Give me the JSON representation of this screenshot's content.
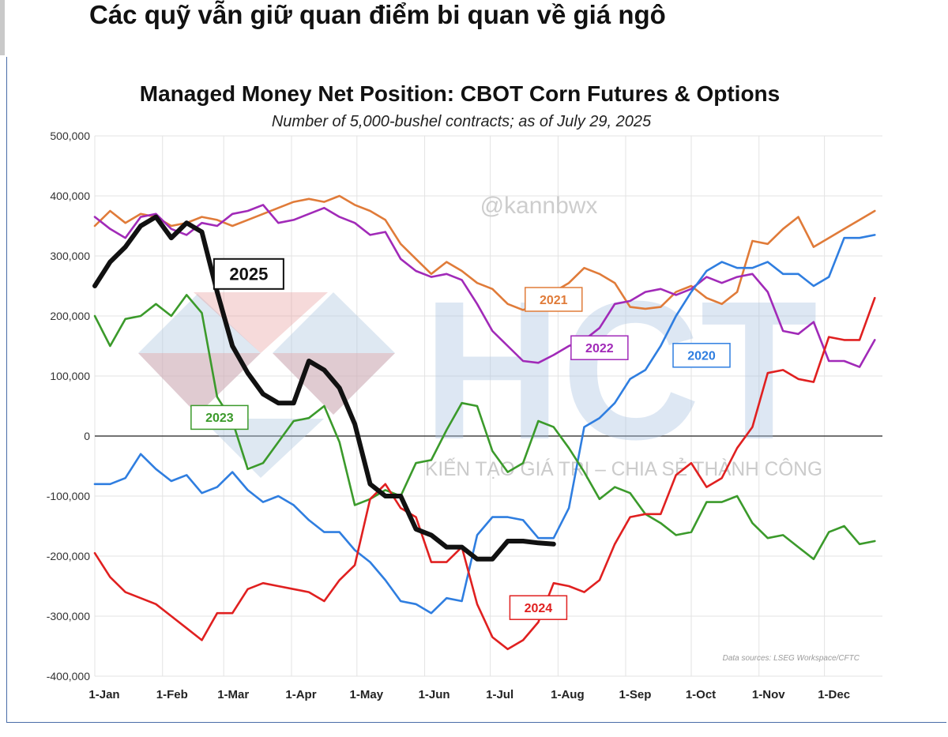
{
  "headline": "Các quỹ vẫn giữ quan điểm bi quan về giá ngô",
  "chart_data": {
    "type": "line",
    "title": "Managed Money Net Position: CBOT Corn Futures & Options",
    "subtitle": "Number of 5,000-bushel contracts; as of July 29, 2025",
    "xlabel": "",
    "ylabel": "",
    "ylim": [
      -400000,
      500000
    ],
    "y_ticks": [
      500000,
      400000,
      300000,
      200000,
      100000,
      0,
      -100000,
      -200000,
      -300000,
      -400000
    ],
    "y_tick_labels": [
      "500,000",
      "400,000",
      "300,000",
      "200,000",
      "100,000",
      "0",
      "-100,000",
      "-200,000",
      "-300,000",
      "-400,000"
    ],
    "x_tick_labels": [
      "1-Jan",
      "1-Feb",
      "1-Mar",
      "1-Apr",
      "1-May",
      "1-Jun",
      "1-Jul",
      "1-Aug",
      "1-Sep",
      "1-Oct",
      "1-Nov",
      "1-Dec"
    ],
    "x_unit": "week of year (0 = 1-Jan)",
    "grid": true,
    "watermark": "@kannbwx",
    "logo_text": "HCT",
    "logo_tagline": "KIẾN TẠO GIÁ TRỊ – CHIA SẺ THÀNH CÔNG",
    "source": "Data sources: LSEG Workspace/CFTC",
    "series": [
      {
        "name": "2021",
        "color": "#e07b39",
        "x": [
          0,
          1,
          2,
          3,
          4,
          5,
          6,
          7,
          8,
          9,
          10,
          11,
          12,
          13,
          14,
          15,
          16,
          17,
          18,
          19,
          20,
          21,
          22,
          23,
          24,
          25,
          26,
          27,
          28,
          29,
          30,
          31,
          32,
          33,
          34,
          35,
          36,
          37,
          38,
          39,
          40,
          41,
          42,
          43,
          44,
          45,
          46,
          47,
          48,
          49,
          50,
          51
        ],
        "values": [
          350000,
          375000,
          355000,
          370000,
          365000,
          350000,
          355000,
          365000,
          360000,
          350000,
          360000,
          370000,
          380000,
          390000,
          395000,
          390000,
          400000,
          385000,
          375000,
          360000,
          320000,
          295000,
          270000,
          290000,
          275000,
          255000,
          245000,
          220000,
          210000,
          220000,
          240000,
          255000,
          280000,
          270000,
          255000,
          215000,
          212000,
          215000,
          240000,
          250000,
          230000,
          220000,
          240000,
          325000,
          320000,
          345000,
          365000,
          315000,
          330000,
          345000,
          360000,
          375000
        ]
      },
      {
        "name": "2022",
        "color": "#a12ab8",
        "x": [
          0,
          1,
          2,
          3,
          4,
          5,
          6,
          7,
          8,
          9,
          10,
          11,
          12,
          13,
          14,
          15,
          16,
          17,
          18,
          19,
          20,
          21,
          22,
          23,
          24,
          25,
          26,
          27,
          28,
          29,
          30,
          31,
          32,
          33,
          34,
          35,
          36,
          37,
          38,
          39,
          40,
          41,
          42,
          43,
          44,
          45,
          46,
          47,
          48,
          49,
          50,
          51
        ],
        "values": [
          365000,
          345000,
          330000,
          365000,
          370000,
          345000,
          335000,
          355000,
          350000,
          370000,
          375000,
          385000,
          355000,
          360000,
          370000,
          380000,
          365000,
          355000,
          335000,
          340000,
          295000,
          275000,
          265000,
          270000,
          260000,
          220000,
          175000,
          150000,
          125000,
          122000,
          135000,
          150000,
          160000,
          180000,
          220000,
          225000,
          240000,
          245000,
          235000,
          245000,
          265000,
          255000,
          265000,
          270000,
          240000,
          175000,
          170000,
          190000,
          125000,
          125000,
          115000,
          160000
        ]
      },
      {
        "name": "2020",
        "color": "#2f7ee0",
        "x": [
          0,
          1,
          2,
          3,
          4,
          5,
          6,
          7,
          8,
          9,
          10,
          11,
          12,
          13,
          14,
          15,
          16,
          17,
          18,
          19,
          20,
          21,
          22,
          23,
          24,
          25,
          26,
          27,
          28,
          29,
          30,
          31,
          32,
          33,
          34,
          35,
          36,
          37,
          38,
          39,
          40,
          41,
          42,
          43,
          44,
          45,
          46,
          47,
          48,
          49,
          50,
          51
        ],
        "values": [
          -80000,
          -80000,
          -70000,
          -30000,
          -55000,
          -75000,
          -65000,
          -95000,
          -85000,
          -60000,
          -90000,
          -110000,
          -100000,
          -115000,
          -140000,
          -160000,
          -160000,
          -190000,
          -210000,
          -240000,
          -275000,
          -280000,
          -295000,
          -270000,
          -275000,
          -165000,
          -135000,
          -135000,
          -140000,
          -170000,
          -170000,
          -120000,
          15000,
          30000,
          55000,
          95000,
          110000,
          150000,
          200000,
          240000,
          275000,
          290000,
          280000,
          280000,
          290000,
          270000,
          270000,
          250000,
          265000,
          330000,
          330000,
          335000
        ]
      },
      {
        "name": "2023",
        "color": "#3b9a2b",
        "x": [
          0,
          1,
          2,
          3,
          4,
          5,
          6,
          7,
          8,
          9,
          10,
          11,
          12,
          13,
          14,
          15,
          16,
          17,
          18,
          19,
          20,
          21,
          22,
          23,
          24,
          25,
          26,
          27,
          28,
          29,
          30,
          31,
          32,
          33,
          34,
          35,
          36,
          37,
          38,
          39,
          40,
          41,
          42,
          43,
          44,
          45,
          46,
          47,
          48,
          49,
          50,
          51
        ],
        "values": [
          200000,
          150000,
          195000,
          200000,
          220000,
          200000,
          235000,
          205000,
          65000,
          25000,
          -55000,
          -45000,
          -10000,
          25000,
          30000,
          50000,
          -10000,
          -115000,
          -105000,
          -90000,
          -100000,
          -45000,
          -40000,
          10000,
          55000,
          50000,
          -25000,
          -60000,
          -45000,
          25000,
          15000,
          -20000,
          -60000,
          -105000,
          -85000,
          -95000,
          -130000,
          -145000,
          -165000,
          -160000,
          -110000,
          -110000,
          -100000,
          -145000,
          -170000,
          -165000,
          -185000,
          -205000,
          -160000,
          -150000,
          -180000,
          -175000
        ]
      },
      {
        "name": "2024",
        "color": "#e02020",
        "x": [
          0,
          1,
          2,
          3,
          4,
          5,
          6,
          7,
          8,
          9,
          10,
          11,
          12,
          13,
          14,
          15,
          16,
          17,
          18,
          19,
          20,
          21,
          22,
          23,
          24,
          25,
          26,
          27,
          28,
          29,
          30,
          31,
          32,
          33,
          34,
          35,
          36,
          37,
          38,
          39,
          40,
          41,
          42,
          43,
          44,
          45,
          46,
          47,
          48,
          49,
          50,
          51
        ],
        "values": [
          -195000,
          -235000,
          -260000,
          -270000,
          -280000,
          -300000,
          -320000,
          -340000,
          -295000,
          -295000,
          -255000,
          -245000,
          -250000,
          -255000,
          -260000,
          -275000,
          -240000,
          -215000,
          -105000,
          -80000,
          -120000,
          -135000,
          -210000,
          -210000,
          -185000,
          -280000,
          -335000,
          -355000,
          -340000,
          -310000,
          -245000,
          -250000,
          -260000,
          -240000,
          -180000,
          -135000,
          -130000,
          -130000,
          -65000,
          -45000,
          -85000,
          -70000,
          -20000,
          15000,
          105000,
          110000,
          95000,
          90000,
          165000,
          160000,
          160000,
          230000
        ]
      },
      {
        "name": "2025",
        "color": "#111111",
        "x": [
          0,
          1,
          2,
          3,
          4,
          5,
          6,
          7,
          8,
          9,
          10,
          11,
          12,
          13,
          14,
          15,
          16,
          17,
          18,
          19,
          20,
          21,
          22,
          23,
          24,
          25,
          26,
          27,
          28,
          29,
          30
        ],
        "values": [
          250000,
          290000,
          315000,
          350000,
          365000,
          330000,
          355000,
          340000,
          240000,
          150000,
          105000,
          70000,
          55000,
          55000,
          125000,
          110000,
          80000,
          20000,
          -80000,
          -100000,
          -100000,
          -155000,
          -165000,
          -185000,
          -185000,
          -205000,
          -205000,
          -175000,
          -175000,
          -178000,
          -180000
        ]
      }
    ],
    "annotations": [
      {
        "text": "2025",
        "series": "2025"
      },
      {
        "text": "2021",
        "series": "2021"
      },
      {
        "text": "2022",
        "series": "2022"
      },
      {
        "text": "2020",
        "series": "2020"
      },
      {
        "text": "2023",
        "series": "2023"
      },
      {
        "text": "2024",
        "series": "2024"
      }
    ]
  }
}
